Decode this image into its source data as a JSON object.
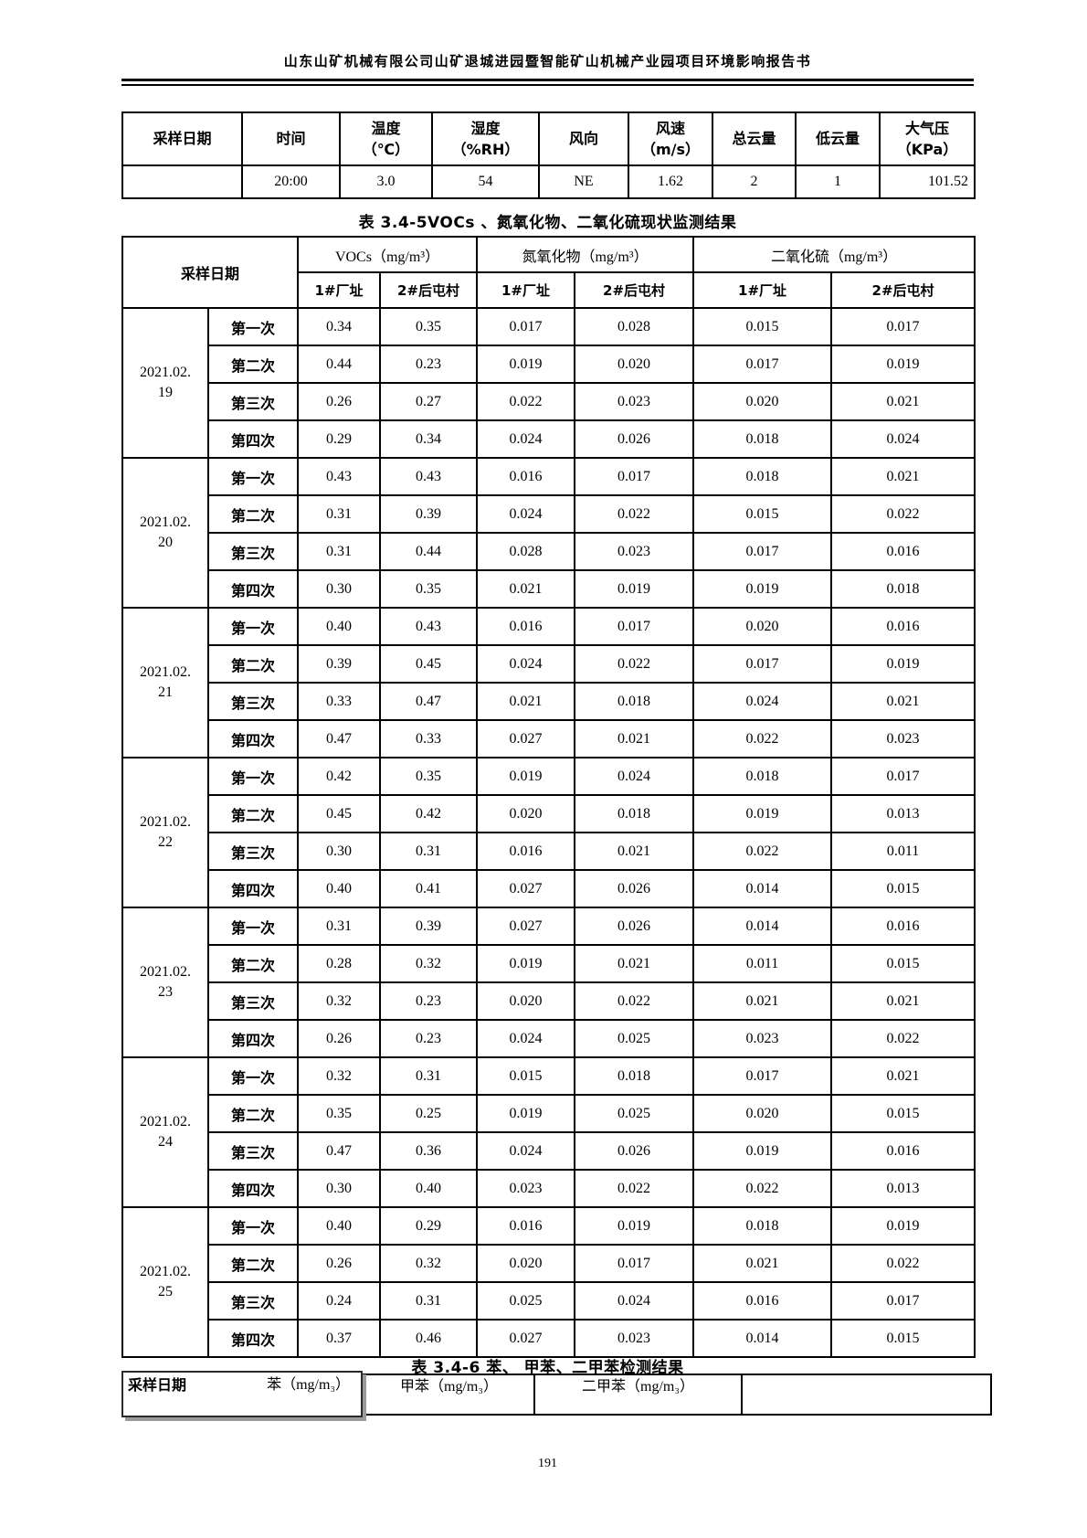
{
  "page": {
    "header_title": "山东山矿机械有限公司山矿退城进园暨智能矿山机械产业园项目环境影响报告书",
    "page_number": "191"
  },
  "weather_table": {
    "headers": [
      "采样日期",
      "时间",
      "温度\n（℃）",
      "湿度\n（%RH）",
      "风向",
      "风速\n（m/s）",
      "总云量",
      "低云量",
      "大气压\n（KPa）"
    ],
    "row": [
      "",
      "20:00",
      "3.0",
      "54",
      "NE",
      "1.62",
      "2",
      "1",
      "101.52"
    ]
  },
  "voc_table": {
    "title": "表 3.4-5VOCs 、氮氧化物、二氧化硫现状监测结果",
    "date_header": "采样日期",
    "col_groups": [
      "VOCs（mg/m³）",
      "氮氧化物（mg/m³）",
      "二氧化硫（mg/m³）"
    ],
    "site_headers": [
      "1#厂址",
      "2#后屯村",
      "1#厂址",
      "2#后屯村",
      "1#厂址",
      "2#后屯村"
    ],
    "groups": [
      {
        "date": "2021.02.\n19",
        "rows": [
          {
            "label": "第一次",
            "values": [
              "0.34",
              "0.35",
              "0.017",
              "0.028",
              "0.015",
              "0.017"
            ]
          },
          {
            "label": "第二次",
            "values": [
              "0.44",
              "0.23",
              "0.019",
              "0.020",
              "0.017",
              "0.019"
            ]
          },
          {
            "label": "第三次",
            "values": [
              "0.26",
              "0.27",
              "0.022",
              "0.023",
              "0.020",
              "0.021"
            ]
          },
          {
            "label": "第四次",
            "values": [
              "0.29",
              "0.34",
              "0.024",
              "0.026",
              "0.018",
              "0.024"
            ]
          }
        ]
      },
      {
        "date": "2021.02.\n20",
        "rows": [
          {
            "label": "第一次",
            "values": [
              "0.43",
              "0.43",
              "0.016",
              "0.017",
              "0.018",
              "0.021"
            ]
          },
          {
            "label": "第二次",
            "values": [
              "0.31",
              "0.39",
              "0.024",
              "0.022",
              "0.015",
              "0.022"
            ]
          },
          {
            "label": "第三次",
            "values": [
              "0.31",
              "0.44",
              "0.028",
              "0.023",
              "0.017",
              "0.016"
            ]
          },
          {
            "label": "第四次",
            "values": [
              "0.30",
              "0.35",
              "0.021",
              "0.019",
              "0.019",
              "0.018"
            ]
          }
        ]
      },
      {
        "date": "2021.02.\n21",
        "rows": [
          {
            "label": "第一次",
            "values": [
              "0.40",
              "0.43",
              "0.016",
              "0.017",
              "0.020",
              "0.016"
            ]
          },
          {
            "label": "第二次",
            "values": [
              "0.39",
              "0.45",
              "0.024",
              "0.022",
              "0.017",
              "0.019"
            ]
          },
          {
            "label": "第三次",
            "values": [
              "0.33",
              "0.47",
              "0.021",
              "0.018",
              "0.024",
              "0.021"
            ]
          },
          {
            "label": "第四次",
            "values": [
              "0.47",
              "0.33",
              "0.027",
              "0.021",
              "0.022",
              "0.023"
            ]
          }
        ]
      },
      {
        "date": "2021.02.\n22",
        "rows": [
          {
            "label": "第一次",
            "values": [
              "0.42",
              "0.35",
              "0.019",
              "0.024",
              "0.018",
              "0.017"
            ]
          },
          {
            "label": "第二次",
            "values": [
              "0.45",
              "0.42",
              "0.020",
              "0.018",
              "0.019",
              "0.013"
            ]
          },
          {
            "label": "第三次",
            "values": [
              "0.30",
              "0.31",
              "0.016",
              "0.021",
              "0.022",
              "0.011"
            ]
          },
          {
            "label": "第四次",
            "values": [
              "0.40",
              "0.41",
              "0.027",
              "0.026",
              "0.014",
              "0.015"
            ]
          }
        ]
      },
      {
        "date": "2021.02.\n23",
        "rows": [
          {
            "label": "第一次",
            "values": [
              "0.31",
              "0.39",
              "0.027",
              "0.026",
              "0.014",
              "0.016"
            ]
          },
          {
            "label": "第二次",
            "values": [
              "0.28",
              "0.32",
              "0.019",
              "0.021",
              "0.011",
              "0.015"
            ]
          },
          {
            "label": "第三次",
            "values": [
              "0.32",
              "0.23",
              "0.020",
              "0.022",
              "0.021",
              "0.021"
            ]
          },
          {
            "label": "第四次",
            "values": [
              "0.26",
              "0.23",
              "0.024",
              "0.025",
              "0.023",
              "0.022"
            ]
          }
        ]
      },
      {
        "date": "2021.02.\n24",
        "rows": [
          {
            "label": "第一次",
            "values": [
              "0.32",
              "0.31",
              "0.015",
              "0.018",
              "0.017",
              "0.021"
            ]
          },
          {
            "label": "第二次",
            "values": [
              "0.35",
              "0.25",
              "0.019",
              "0.025",
              "0.020",
              "0.015"
            ]
          },
          {
            "label": "第三次",
            "values": [
              "0.47",
              "0.36",
              "0.024",
              "0.026",
              "0.019",
              "0.016"
            ]
          },
          {
            "label": "第四次",
            "values": [
              "0.30",
              "0.40",
              "0.023",
              "0.022",
              "0.022",
              "0.013"
            ]
          }
        ]
      },
      {
        "date": "2021.02.\n25",
        "rows": [
          {
            "label": "第一次",
            "values": [
              "0.40",
              "0.29",
              "0.016",
              "0.019",
              "0.018",
              "0.019"
            ]
          },
          {
            "label": "第二次",
            "values": [
              "0.26",
              "0.32",
              "0.020",
              "0.017",
              "0.021",
              "0.022"
            ]
          },
          {
            "label": "第三次",
            "values": [
              "0.24",
              "0.31",
              "0.025",
              "0.024",
              "0.016",
              "0.017"
            ]
          },
          {
            "label": "第四次",
            "values": [
              "0.37",
              "0.46",
              "0.027",
              "0.023",
              "0.014",
              "0.015"
            ]
          }
        ]
      }
    ]
  },
  "btx_table": {
    "title": "表 3.4-6 苯、 甲苯、二甲苯检测结果",
    "headers": [
      "采样日期",
      "苯（mg/m₃）",
      "甲苯（mg/m₃）",
      "二甲苯（mg/m₃）"
    ]
  }
}
